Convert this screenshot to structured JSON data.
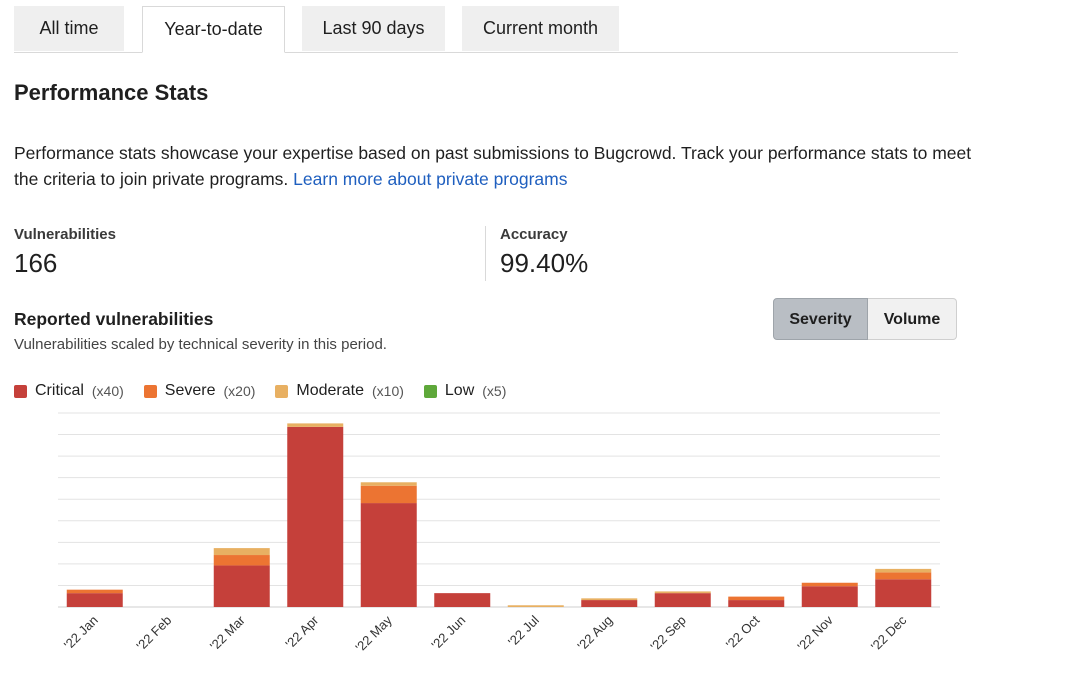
{
  "tabs": [
    {
      "label": "All time",
      "active": false
    },
    {
      "label": "Year-to-date",
      "active": true
    },
    {
      "label": "Last 90 days",
      "active": false
    },
    {
      "label": "Current month",
      "active": false
    }
  ],
  "page": {
    "title": "Performance Stats",
    "description": "Performance stats showcase your expertise based on past submissions to Bugcrowd. Track your performance stats to meet the criteria to join private programs.",
    "link_text": "Learn more about private programs"
  },
  "stats": {
    "vulnerabilities_label": "Vulnerabilities",
    "vulnerabilities_value": "166",
    "accuracy_label": "Accuracy",
    "accuracy_value": "99.40%"
  },
  "reported": {
    "title": "Reported vulnerabilities",
    "subtitle": "Vulnerabilities scaled by technical severity in this period.",
    "toggle": {
      "severity": "Severity",
      "volume": "Volume",
      "selected": "Severity"
    }
  },
  "legend": [
    {
      "label": "Critical",
      "mult": "(x40)",
      "color": "#c5403a"
    },
    {
      "label": "Severe",
      "mult": "(x20)",
      "color": "#ec7432"
    },
    {
      "label": "Moderate",
      "mult": "(x10)",
      "color": "#e8b062"
    },
    {
      "label": "Low",
      "mult": "(x5)",
      "color": "#5ea83a"
    }
  ],
  "chart_data": {
    "type": "bar",
    "stacked": true,
    "categories": [
      "'22 Jan",
      "'22 Feb",
      "'22 Mar",
      "'22 Apr",
      "'22 May",
      "'22 Jun",
      "'22 Jul",
      "'22 Aug",
      "'22 Sep",
      "'22 Oct",
      "'22 Nov",
      "'22 Dec"
    ],
    "series": [
      {
        "name": "Critical",
        "color": "#c5403a",
        "values": [
          80,
          0,
          240,
          1040,
          600,
          80,
          0,
          40,
          80,
          40,
          120,
          160
        ]
      },
      {
        "name": "Severe",
        "color": "#ec7432",
        "values": [
          20,
          0,
          60,
          0,
          100,
          0,
          0,
          0,
          0,
          20,
          20,
          40
        ]
      },
      {
        "name": "Moderate",
        "color": "#e8b062",
        "values": [
          0,
          0,
          40,
          20,
          20,
          0,
          10,
          10,
          10,
          0,
          0,
          20
        ]
      },
      {
        "name": "Low",
        "color": "#5ea83a",
        "values": [
          0,
          0,
          0,
          0,
          0,
          0,
          0,
          0,
          0,
          0,
          0,
          0
        ]
      }
    ],
    "ylim": [
      0,
      1120
    ],
    "grid": true,
    "legend_position": "top-left",
    "y_tick_labels_shown": false
  }
}
